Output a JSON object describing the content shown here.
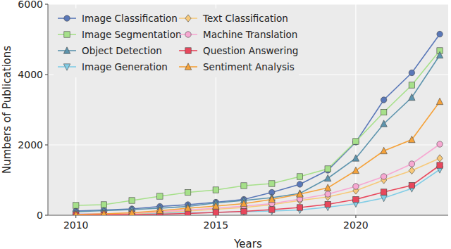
{
  "chart_data": {
    "type": "line",
    "x_label": "Years",
    "y_label": "Numbers of Publications",
    "x": [
      2010,
      2011,
      2012,
      2013,
      2014,
      2015,
      2016,
      2017,
      2018,
      2019,
      2020,
      2021,
      2022,
      2023
    ],
    "xlim": [
      2009,
      2023.3
    ],
    "xticks": [
      2010,
      2015,
      2020
    ],
    "ylim": [
      0,
      6000
    ],
    "yticks": [
      0,
      2000,
      4000,
      6000
    ],
    "grid": true,
    "legend": "upper left",
    "series": [
      {
        "name": "Image Classification",
        "color": "#5a78b8",
        "marker": "circle",
        "values": [
          120,
          150,
          180,
          250,
          300,
          370,
          450,
          650,
          880,
          1280,
          2080,
          3280,
          4050,
          5150
        ]
      },
      {
        "name": "Image Segmentation",
        "color": "#a6e08a",
        "marker": "square",
        "values": [
          280,
          300,
          420,
          540,
          650,
          720,
          840,
          900,
          1100,
          1320,
          2100,
          2930,
          3700,
          4680
        ]
      },
      {
        "name": "Object Detection",
        "color": "#5d94ad",
        "marker": "triangle",
        "values": [
          100,
          130,
          160,
          200,
          250,
          350,
          420,
          500,
          620,
          1050,
          1620,
          2600,
          3350,
          4550
        ]
      },
      {
        "name": "Image Generation",
        "color": "#82cde6",
        "marker": "triangle_down",
        "values": [
          30,
          40,
          50,
          60,
          70,
          80,
          100,
          120,
          150,
          230,
          330,
          490,
          760,
          1300
        ]
      },
      {
        "name": "Text Classification",
        "color": "#f7c97a",
        "marker": "diamond",
        "values": [
          20,
          30,
          50,
          80,
          120,
          170,
          220,
          300,
          420,
          520,
          700,
          1000,
          1270,
          1620
        ]
      },
      {
        "name": "Machine Translation",
        "color": "#f7a8d2",
        "marker": "circle",
        "values": [
          30,
          40,
          60,
          100,
          150,
          200,
          260,
          330,
          460,
          600,
          820,
          1100,
          1460,
          2020
        ]
      },
      {
        "name": "Question Answering",
        "color": "#e8475c",
        "marker": "square",
        "values": [
          10,
          15,
          20,
          30,
          50,
          80,
          110,
          160,
          220,
          310,
          450,
          660,
          850,
          1420
        ]
      },
      {
        "name": "Sentiment Analysis",
        "color": "#f5a23a",
        "marker": "triangle",
        "values": [
          20,
          40,
          70,
          130,
          200,
          260,
          330,
          450,
          600,
          780,
          1270,
          1830,
          2150,
          3230
        ]
      }
    ]
  }
}
